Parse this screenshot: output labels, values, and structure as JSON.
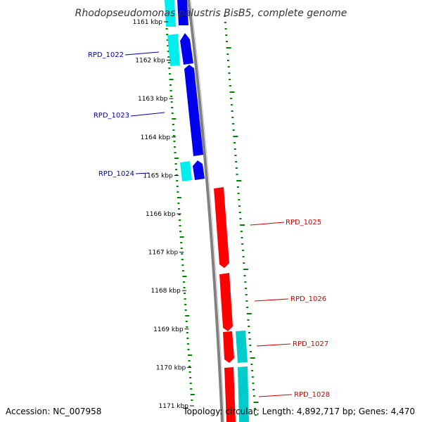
{
  "title": "Rhodopseudomonas palustris BisB5, complete genome",
  "footer": {
    "accession": "Accession: NC_007958",
    "topology": "Topology: circular; Length: 4,892,717 bp; Genes: 4,470"
  },
  "colors": {
    "forward_gene": "#0000ee",
    "forward_cds": "#00eeee",
    "reverse_gene": "#ff0000",
    "reverse_cds": "#00cccc",
    "backbone": "#808080",
    "gc_ticks": "#008000",
    "forward_label": "#000099",
    "reverse_label": "#cc0000"
  },
  "kbp_ticks": [
    "1161 kbp",
    "1162 kbp",
    "1163 kbp",
    "1164 kbp",
    "1165 kbp",
    "1166 kbp",
    "1167 kbp",
    "1168 kbp",
    "1169 kbp",
    "1170 kbp",
    "1171 kbp"
  ],
  "genes": [
    {
      "label": "RPD_1022",
      "strand": "forward"
    },
    {
      "label": "RPD_1023",
      "strand": "forward"
    },
    {
      "label": "RPD_1024",
      "strand": "forward"
    },
    {
      "label": "RPD_1025",
      "strand": "reverse"
    },
    {
      "label": "RPD_1026",
      "strand": "reverse"
    },
    {
      "label": "RPD_1027",
      "strand": "reverse"
    },
    {
      "label": "RPD_1028",
      "strand": "reverse"
    }
  ]
}
